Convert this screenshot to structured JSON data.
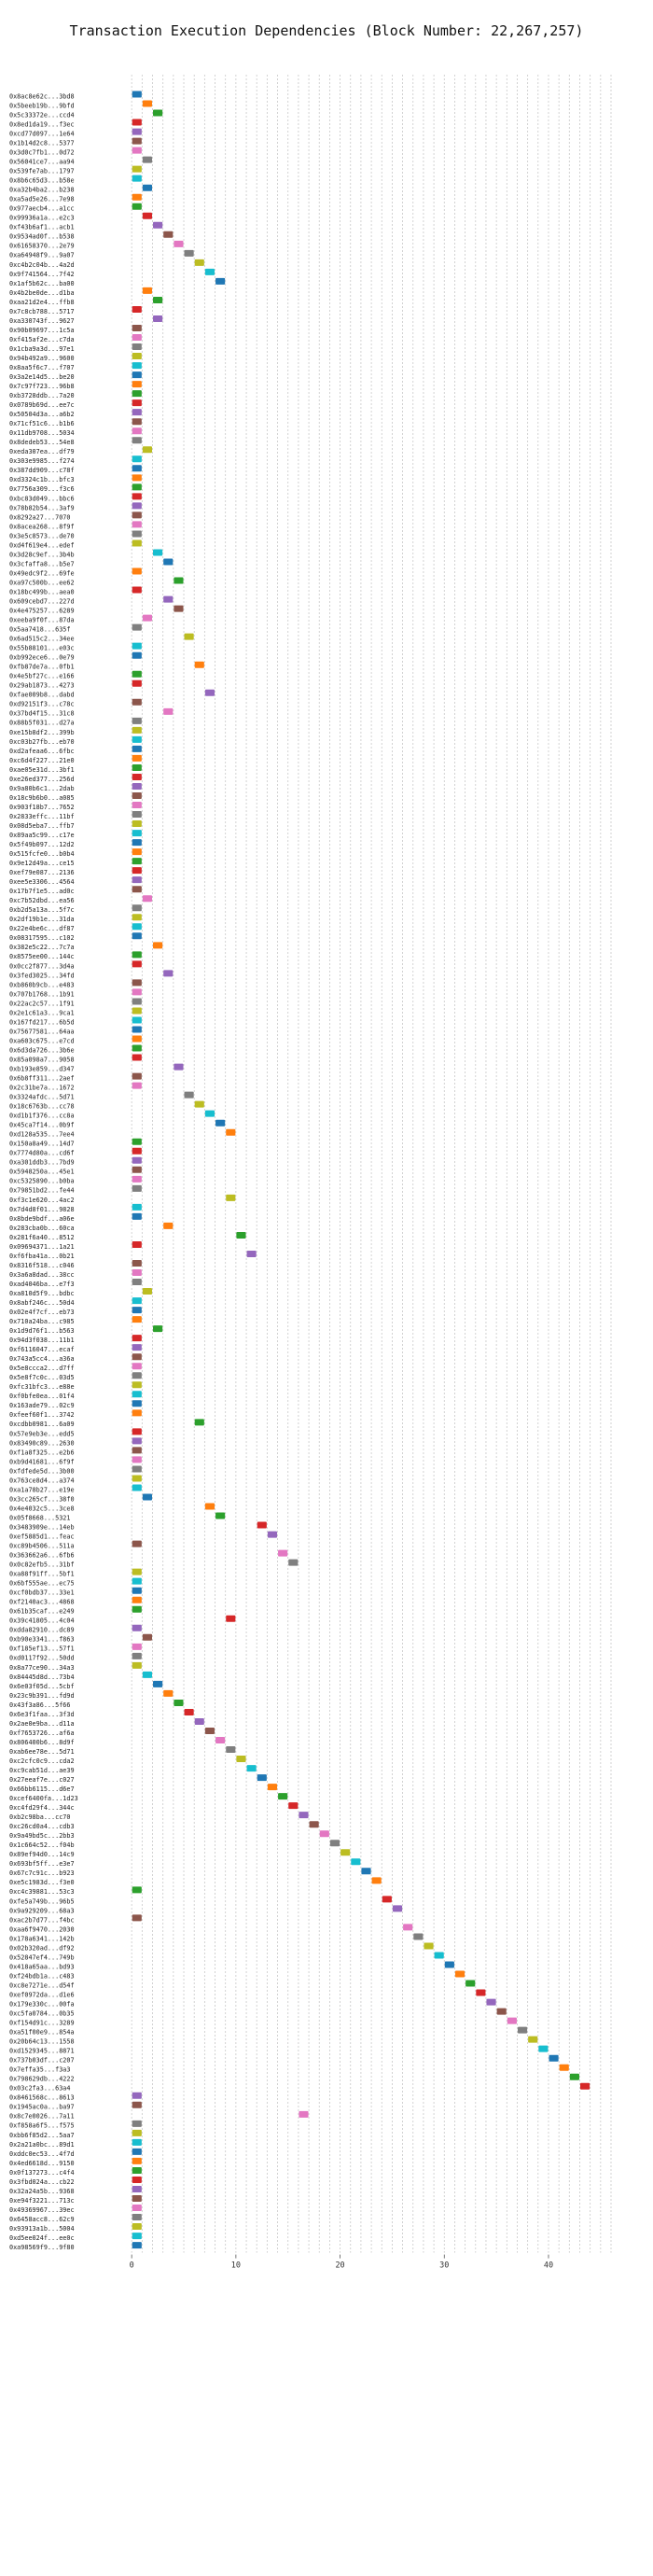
{
  "chart_data": {
    "type": "gantt",
    "title": "Transaction Execution Dependencies (Block Number: 22,267,257)",
    "xlabel": "",
    "ylabel": "",
    "xlim": [
      -1,
      46
    ],
    "xticks": [
      0,
      10,
      20,
      30,
      40
    ],
    "grid": "vertical-dotted",
    "legend": "none",
    "palette": [
      "#1f77b4",
      "#ff7f0e",
      "#2ca02c",
      "#d62728",
      "#9467bd",
      "#8c564b",
      "#e377c2",
      "#7f7f7f",
      "#bcbd22",
      "#17becf"
    ],
    "transactions": [
      "0x8ac8e62c...3bd8",
      "0x5beeb19b...9bfd",
      "0x5c33372e...ccd4",
      "0x8ed1da19...f3ec",
      "0xcd77d097...1e64",
      "0x1b14d2c8...5377",
      "0x3d0c7fb1...0d72",
      "0x56041ce7...aa94",
      "0x539fe7ab...1797",
      "0x8b6c65d3...b58e",
      "0xa32b4ba2...b238",
      "0xa5ad5e26...7e98",
      "0x977aecb4...a1cc",
      "0x99936a1a...e2c3",
      "0xf43b6af1...acb1",
      "0x9534ad0f...b538",
      "0x61658370...2e79",
      "0xa64948f9...9a07",
      "0xc4b2c04b...4a2d",
      "0x9f741564...7f42",
      "0x1af5b62c...ba00",
      "0x4b2be0de...d1ba",
      "0xaa21d2e4...ffb8",
      "0x7c8cb788...5717",
      "0xa330743f...9627",
      "0x90b09697...1c5a",
      "0xf415af2e...c7da",
      "0x1cba9a3d...97e1",
      "0x94b492a9...9600",
      "0x8aa5f6c7...f707",
      "0x3a2e14d5...be20",
      "0x7c97f723...96b8",
      "0xb3728ddb...7a20",
      "0x0789b69d...ee7c",
      "0x50504d3a...a6b2",
      "0x71cf51c6...b1b6",
      "0x11db9708...5034",
      "0x8dedeb53...54e8",
      "0xeda307ea...df79",
      "0x303e9985...f274",
      "0x387dd909...c78f",
      "0xd3324c1b...bfc3",
      "0x7756a309...f3c6",
      "0xbc83d049...bbc6",
      "0x78b82b54...3af9",
      "0x8292a27...7070",
      "0x8acea268...8f9f",
      "0x3e5c8573...de70",
      "0xd4f619e4...edef",
      "0x3d28c9ef...3b4b",
      "0x3cfaffa8...b5e7",
      "0x49edc9f2...69fe",
      "0xa97c500b...ee62",
      "0x18bc499b...aea0",
      "0x609cebd7...227d",
      "0x4e475257...6289",
      "0xeeba9f0f...87da",
      "0x5aa7418...635f",
      "0x6ad515c2...34ee",
      "0x55b88101...e03c",
      "0xb992ece6...0e79",
      "0xfb87de7a...0fb1",
      "0x4e5bf27c...e166",
      "0x29ab1873...4273",
      "0xfae009b8...dabd",
      "0xd92151f3...c78c",
      "0x37bd4f15...31c8",
      "0x88b5f031...d27a",
      "0xe15b8df2...399b",
      "0xc03b27fb...eb70",
      "0xd2afeaa6...6fbc",
      "0xc6d4f227...21e0",
      "0xae05e31d...3bf1",
      "0xe26ed377...256d",
      "0x9a80b6c1...2dab",
      "0x18c9b6b0...a085",
      "0x903f18b7...7652",
      "0x2833effc...11bf",
      "0x08d5eba7...ffb7",
      "0x89aa5c99...c17e",
      "0x5f49b097...12d2",
      "0x515fcfe0...b0b4",
      "0x9e12d49a...ce15",
      "0xef79e087...2136",
      "0xee5e3306...4564",
      "0x17b7f1e5...ad0c",
      "0xc7b52dbd...ea56",
      "0xb2d5a13a...5f7c",
      "0x2df19b1e...31da",
      "0x22e4be6c...df87",
      "0x08317595...c102",
      "0x382e5c22...7c7a",
      "0x8575ee00...144c",
      "0x0cc2f877...3d4a",
      "0x3fed3025...34fd",
      "0xb860b9cb...e483",
      "0x707b1768...1b91",
      "0x22ac2c57...1f91",
      "0x2e1c61a3...9ca1",
      "0x167fd217...6b5d",
      "0x75677581...64aa",
      "0xa603c675...e7cd",
      "0x6d3da726...3b6e",
      "0x85a098a7...9058",
      "0xb193e859...d347",
      "0x6b8ff311...2aef",
      "0x2c31be7a...1672",
      "0x3324afdc...5d71",
      "0x18c6763b...cc78",
      "0xd1b1f376...cc8a",
      "0x45ca7f14...0b9f",
      "0xd128a535...7ee4",
      "0x150a8a49...14d7",
      "0x7774d80a...cd6f",
      "0xa301ddb3...7bd9",
      "0x5948250a...45e1",
      "0xc5325890...b0ba",
      "0x79851bd2...fe44",
      "0xf3c1e620...4ac2",
      "0x7d4d8f01...9828",
      "0x8bde9bdf...a06e",
      "0x283cba0b...60ca",
      "0x281f6a40...8512",
      "0x09694371...1a21",
      "0xf6fba41a...0b21",
      "0x8316f518...c046",
      "0x3a6a8dad...38cc",
      "0xad4046ba...e7f3",
      "0xa810d5f9...bdbc",
      "0x8abf246c...50d4",
      "0x02e4f7cf...eb73",
      "0x710a24ba...c985",
      "0x1d9d76f1...b563",
      "0x94d3f038...11b1",
      "0xf6116047...ecaf",
      "0x743a5cc4...a36a",
      "0x5e8ccca2...d7ff",
      "0x5e8f7c0c...03d5",
      "0xfc31bfc3...e88e",
      "0xf0bfe0ea...01f4",
      "0x163ade79...02c9",
      "0xfeef60f1...3742",
      "0xcdbb0981...6a09",
      "0x57e9eb3e...edd5",
      "0x83490c89...2630",
      "0xf1a8f325...e2b6",
      "0xb9d41681...6f9f",
      "0xfdfede5d...3b00",
      "0x763ce8d4...a374",
      "0xa1a78b27...e19e",
      "0x3cc265cf...38f0",
      "0x4e4032c5...3ce8",
      "0x05f8668...5321",
      "0x3483909e...14eb",
      "0xef5885d1...feac",
      "0xc89b4506...511a",
      "0x363662a6...6fb6",
      "0x0c82efb5...31bf",
      "0xa88f91ff...5bf1",
      "0x6bf555ae...ec75",
      "0xcf0bdb37...33e1",
      "0xf2140ac3...4868",
      "0x61b35caf...e249",
      "0x39c41805...4c04",
      "0xdda82910...dc89",
      "0xb90e3341...f863",
      "0xf185ef13...57f1",
      "0xd0117f92...50dd",
      "0x8a77ce90...34a3",
      "0x84445d8d...73b4",
      "0x6e03f05d...5cbf",
      "0x23c9b391...fd9d",
      "0x43f3a86...5f66",
      "0x6e3f1faa...3f3d",
      "0x2ae0e9ba...d11a",
      "0xf7653726...af6a",
      "0x806400b6...8d9f",
      "0xab6ee78e...5d71",
      "0xc2cfc0c9...cda2",
      "0xc9cab51d...ae39",
      "0x27eeaf7e...c027",
      "0x66bb6115...d6e7",
      "0xcef6400fa...1d23",
      "0xc4fd29f4...344c",
      "0xb2c98ba...cc70",
      "0xc26cd0a4...cdb3",
      "0x9a49bd5c...2bb3",
      "0x1c664c52...f04b",
      "0x89ef94d0...14c9",
      "0x693bf5ff...e3e7",
      "0x67c7c91c...b923",
      "0xe5c1983d...f3e0",
      "0xc4c39881...53c3",
      "0xfe5a749b...96b5",
      "0x9a929209...68a3",
      "0xac2b7d77...f4bc",
      "0xaa6f9470...2030",
      "0x178a6341...142b",
      "0x02b320ad...df92",
      "0x52847ef4...749b",
      "0x418a65aa...bd93",
      "0xf24bdb1a...c483",
      "0xc8e7271e...d54f",
      "0xef0972da...d1e6",
      "0x179e330c...00fa",
      "0xc5fa0784...0b35",
      "0xf154d91c...3289",
      "0xa51f00e9...854a",
      "0x20b64c13...1558",
      "0xd1529345...8871",
      "0x737b03df...c207",
      "0x7effa35...f3a3",
      "0x798629db...4222",
      "0x03c2fa3...63a4",
      "0x8461568c...8613",
      "0x1945ac0a...ba97",
      "0x8c7e0026...7a11",
      "0xf858a6f5...f575",
      "0xbb6f85d2...5aa7",
      "0x2a21a0bc...89d1",
      "0xddc0ec53...4f7d",
      "0x4ed6618d...9150",
      "0x0f137273...c4f4",
      "0x3fbd024a...cb22",
      "0x32a24a5b...9368",
      "0xe94f3221...713c",
      "0x49369967...39ec",
      "0x6458acc8...62c9",
      "0x93913a1b...5004",
      "0xd5ee024f...ee0c",
      "0xa98569f9...9f80"
    ],
    "start_positions": [
      0,
      1,
      2,
      0,
      0,
      0,
      0,
      1,
      0,
      0,
      1,
      0,
      0,
      1,
      2,
      3,
      4,
      5,
      6,
      7,
      8,
      1,
      2,
      0,
      2,
      0,
      0,
      0,
      0,
      0,
      0,
      0,
      0,
      0,
      0,
      0,
      0,
      0,
      1,
      0,
      0,
      0,
      0,
      0,
      0,
      0,
      0,
      0,
      0,
      2,
      3,
      0,
      4,
      0,
      3,
      4,
      1,
      0,
      5,
      0,
      0,
      6,
      0,
      0,
      7,
      0,
      3,
      0,
      0,
      0,
      0,
      0,
      0,
      0,
      0,
      0,
      0,
      0,
      0,
      0,
      0,
      0,
      0,
      0,
      0,
      0,
      1,
      0,
      0,
      0,
      0,
      2,
      0,
      0,
      3,
      0,
      0,
      0,
      0,
      0,
      0,
      0,
      0,
      0,
      4,
      0,
      0,
      5,
      6,
      7,
      8,
      9,
      0,
      0,
      0,
      0,
      0,
      0,
      9,
      0,
      0,
      3,
      10,
      0,
      11,
      0,
      0,
      0,
      1,
      0,
      0,
      0,
      2,
      0,
      0,
      0,
      0,
      0,
      0,
      0,
      0,
      0,
      6,
      0,
      0,
      0,
      0,
      0,
      0,
      0,
      1,
      7,
      8,
      12,
      13,
      0,
      14,
      15,
      0,
      0,
      0,
      0,
      0,
      9,
      0,
      1,
      0,
      0,
      0,
      1,
      2,
      3,
      4,
      5,
      6,
      7,
      8,
      9,
      10,
      11,
      12,
      13,
      14,
      15,
      16,
      17,
      18,
      19,
      20,
      21,
      22,
      23,
      0,
      24,
      25,
      0,
      26,
      27,
      28,
      29,
      30,
      31,
      32,
      33,
      34,
      35,
      36,
      37,
      38,
      39,
      40,
      41,
      42,
      43,
      0,
      0,
      16,
      0,
      0,
      0,
      0,
      0,
      0,
      0,
      0,
      0,
      0,
      0,
      0,
      0,
      0
    ],
    "durations": [
      1,
      1,
      1,
      1,
      1,
      1,
      1,
      1,
      1,
      1,
      1,
      1,
      1,
      1,
      1,
      1,
      1,
      1,
      1,
      1,
      1,
      1,
      1,
      1,
      1,
      1,
      1,
      1,
      1,
      1,
      1,
      1,
      1,
      1,
      1,
      1,
      1,
      1,
      1,
      1,
      1,
      1,
      1,
      1,
      1,
      1,
      1,
      1,
      1,
      1,
      1,
      1,
      1,
      1,
      1,
      1,
      1,
      1,
      1,
      1,
      1,
      1,
      1,
      1,
      1,
      1,
      1,
      1,
      1,
      1,
      1,
      1,
      1,
      1,
      1,
      1,
      1,
      1,
      1,
      1,
      1,
      1,
      1,
      1,
      1,
      1,
      1,
      1,
      1,
      1,
      1,
      1,
      1,
      1,
      1,
      1,
      1,
      1,
      1,
      1,
      1,
      1,
      1,
      1,
      1,
      1,
      1,
      1,
      1,
      1,
      1,
      1,
      1,
      1,
      1,
      1,
      1,
      1,
      1,
      1,
      1,
      1,
      1,
      1,
      1,
      1,
      1,
      1,
      1,
      1,
      1,
      1,
      1,
      1,
      1,
      1,
      1,
      1,
      1,
      1,
      1,
      1,
      1,
      1,
      1,
      1,
      1,
      1,
      1,
      1,
      1,
      1,
      1,
      1,
      1,
      1,
      1,
      1,
      1,
      1,
      1,
      1,
      1,
      1,
      1,
      1,
      1,
      1,
      1,
      1,
      1,
      1,
      1,
      1,
      1,
      1,
      1,
      1,
      1,
      1,
      1,
      1,
      1,
      1,
      1,
      1,
      1,
      1,
      1,
      1,
      1,
      1,
      1,
      1,
      1,
      1,
      1,
      1,
      1,
      1,
      1,
      1,
      1,
      1,
      1,
      1,
      1,
      1,
      1,
      1,
      1,
      1,
      1,
      1,
      1,
      1,
      1,
      1,
      1,
      1,
      1,
      1,
      1,
      1,
      1,
      1,
      1,
      1,
      1,
      1,
      1
    ]
  }
}
